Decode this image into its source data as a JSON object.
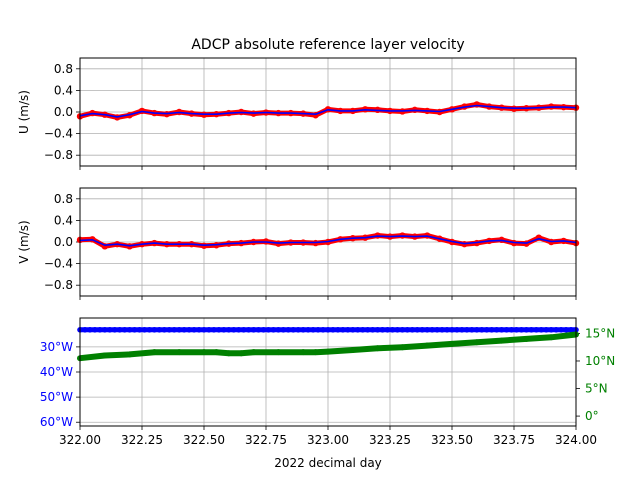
{
  "title": "ADCP absolute reference layer velocity",
  "colors": {
    "raw": "#ff0000",
    "smooth": "#0000ff",
    "lon": "#0000ff",
    "lat": "#008000",
    "grid": "#b0b0b0",
    "axis": "#000000"
  },
  "chart_data": [
    {
      "type": "line",
      "ylabel": "U (m/s)",
      "xlim": [
        322.0,
        324.0
      ],
      "ylim": [
        -1.0,
        1.0
      ],
      "yticks": [
        -0.8,
        -0.4,
        0.0,
        0.4,
        0.8
      ],
      "ytick_labels": [
        "−0.8",
        "−0.4",
        "0.0",
        "0.4",
        "0.8"
      ],
      "grid": true,
      "series": [
        {
          "role": "raw",
          "style": "thick red line with dots",
          "x": [
            322.0,
            322.05,
            322.1,
            322.15,
            322.2,
            322.25,
            322.3,
            322.35,
            322.4,
            322.45,
            322.5,
            322.55,
            322.6,
            322.65,
            322.7,
            322.75,
            322.8,
            322.85,
            322.9,
            322.95,
            323.0,
            323.05,
            323.1,
            323.15,
            323.2,
            323.25,
            323.3,
            323.35,
            323.4,
            323.45,
            323.5,
            323.55,
            323.6,
            323.65,
            323.7,
            323.75,
            323.8,
            323.85,
            323.9,
            323.95,
            324.0
          ],
          "y": [
            -0.08,
            -0.02,
            -0.05,
            -0.1,
            -0.06,
            0.02,
            -0.02,
            -0.04,
            0.0,
            -0.03,
            -0.05,
            -0.04,
            -0.02,
            0.0,
            -0.03,
            -0.01,
            -0.02,
            -0.02,
            -0.03,
            -0.06,
            0.05,
            0.02,
            0.02,
            0.05,
            0.04,
            0.02,
            0.01,
            0.04,
            0.02,
            0.0,
            0.05,
            0.1,
            0.14,
            0.1,
            0.08,
            0.06,
            0.07,
            0.08,
            0.1,
            0.09,
            0.08
          ]
        },
        {
          "role": "smooth",
          "style": "thin blue line",
          "x": [
            322.0,
            322.05,
            322.1,
            322.15,
            322.2,
            322.25,
            322.3,
            322.35,
            322.4,
            322.45,
            322.5,
            322.55,
            322.6,
            322.65,
            322.7,
            322.75,
            322.8,
            322.85,
            322.9,
            322.95,
            323.0,
            323.05,
            323.1,
            323.15,
            323.2,
            323.25,
            323.3,
            323.35,
            323.4,
            323.45,
            323.5,
            323.55,
            323.6,
            323.65,
            323.7,
            323.75,
            323.8,
            323.85,
            323.9,
            323.95,
            324.0
          ],
          "y": [
            -0.07,
            -0.03,
            -0.05,
            -0.09,
            -0.05,
            0.01,
            -0.02,
            -0.03,
            -0.01,
            -0.03,
            -0.04,
            -0.04,
            -0.02,
            -0.01,
            -0.02,
            -0.01,
            -0.02,
            -0.02,
            -0.03,
            -0.04,
            0.04,
            0.02,
            0.02,
            0.04,
            0.03,
            0.02,
            0.02,
            0.03,
            0.02,
            0.01,
            0.05,
            0.09,
            0.12,
            0.1,
            0.08,
            0.07,
            0.07,
            0.08,
            0.09,
            0.09,
            0.08
          ]
        }
      ]
    },
    {
      "type": "line",
      "ylabel": "V (m/s)",
      "xlim": [
        322.0,
        324.0
      ],
      "ylim": [
        -1.0,
        1.0
      ],
      "yticks": [
        -0.8,
        -0.4,
        0.0,
        0.4,
        0.8
      ],
      "ytick_labels": [
        "−0.8",
        "−0.4",
        "0.0",
        "0.4",
        "0.8"
      ],
      "grid": true,
      "series": [
        {
          "role": "raw",
          "style": "thick red line with dots",
          "x": [
            322.0,
            322.05,
            322.1,
            322.15,
            322.2,
            322.25,
            322.3,
            322.35,
            322.4,
            322.45,
            322.5,
            322.55,
            322.6,
            322.65,
            322.7,
            322.75,
            322.8,
            322.85,
            322.9,
            322.95,
            323.0,
            323.05,
            323.1,
            323.15,
            323.2,
            323.25,
            323.3,
            323.35,
            323.4,
            323.45,
            323.5,
            323.55,
            323.6,
            323.65,
            323.7,
            323.75,
            323.8,
            323.85,
            323.9,
            323.95,
            324.0
          ],
          "y": [
            0.04,
            0.05,
            -0.08,
            -0.04,
            -0.08,
            -0.04,
            -0.02,
            -0.04,
            -0.04,
            -0.04,
            -0.07,
            -0.06,
            -0.03,
            -0.02,
            0.0,
            0.01,
            -0.03,
            -0.01,
            -0.01,
            -0.02,
            0.0,
            0.05,
            0.07,
            0.08,
            0.12,
            0.1,
            0.12,
            0.1,
            0.12,
            0.06,
            0.0,
            -0.04,
            -0.02,
            0.02,
            0.04,
            -0.02,
            -0.03,
            0.08,
            0.0,
            0.02,
            -0.02
          ]
        },
        {
          "role": "smooth",
          "style": "thin blue line",
          "x": [
            322.0,
            322.05,
            322.1,
            322.15,
            322.2,
            322.25,
            322.3,
            322.35,
            322.4,
            322.45,
            322.5,
            322.55,
            322.6,
            322.65,
            322.7,
            322.75,
            322.8,
            322.85,
            322.9,
            322.95,
            323.0,
            323.05,
            323.1,
            323.15,
            323.2,
            323.25,
            323.3,
            323.35,
            323.4,
            323.45,
            323.5,
            323.55,
            323.6,
            323.65,
            323.7,
            323.75,
            323.8,
            323.85,
            323.9,
            323.95,
            324.0
          ],
          "y": [
            0.03,
            0.04,
            -0.06,
            -0.04,
            -0.07,
            -0.04,
            -0.02,
            -0.04,
            -0.04,
            -0.04,
            -0.06,
            -0.05,
            -0.03,
            -0.02,
            0.0,
            0.0,
            -0.02,
            -0.01,
            -0.01,
            -0.01,
            0.01,
            0.05,
            0.07,
            0.08,
            0.11,
            0.1,
            0.11,
            0.1,
            0.11,
            0.06,
            0.01,
            -0.03,
            -0.01,
            0.02,
            0.03,
            -0.01,
            -0.02,
            0.06,
            0.01,
            0.02,
            -0.01
          ]
        }
      ]
    },
    {
      "type": "scatter",
      "xlabel": "2022 decimal day",
      "xlim": [
        322.0,
        324.0
      ],
      "xticks": [
        322.0,
        322.25,
        322.5,
        322.75,
        323.0,
        323.25,
        323.5,
        323.75,
        324.0
      ],
      "xtick_labels": [
        "322.00",
        "322.25",
        "322.50",
        "322.75",
        "323.00",
        "323.25",
        "323.50",
        "323.75",
        "324.00"
      ],
      "grid": true,
      "left_axis": {
        "quantity": "longitude",
        "ylim": [
          -61.5,
          -18.5
        ],
        "yticks": [
          -30,
          -40,
          -50,
          -60
        ],
        "ytick_labels": [
          "30°W",
          "40°W",
          "50°W",
          "60°W"
        ],
        "x": [
          322.0,
          324.0
        ],
        "y": [
          -23.2,
          -23.2
        ]
      },
      "right_axis": {
        "quantity": "latitude",
        "ylim": [
          -1.8,
          17.8
        ],
        "yticks": [
          0,
          5,
          10,
          15
        ],
        "ytick_labels": [
          "0°",
          "5°N",
          "10°N",
          "15°N"
        ],
        "x": [
          322.0,
          322.1,
          322.2,
          322.3,
          322.4,
          322.5,
          322.55,
          322.6,
          322.65,
          322.7,
          322.8,
          322.9,
          322.95,
          323.0,
          323.1,
          323.2,
          323.3,
          323.4,
          323.5,
          323.6,
          323.7,
          323.8,
          323.9,
          324.0
        ],
        "y": [
          10.5,
          11.0,
          11.2,
          11.6,
          11.6,
          11.6,
          11.6,
          11.4,
          11.4,
          11.6,
          11.6,
          11.6,
          11.6,
          11.7,
          12.0,
          12.3,
          12.5,
          12.8,
          13.1,
          13.4,
          13.7,
          14.0,
          14.3,
          14.8
        ]
      }
    }
  ]
}
